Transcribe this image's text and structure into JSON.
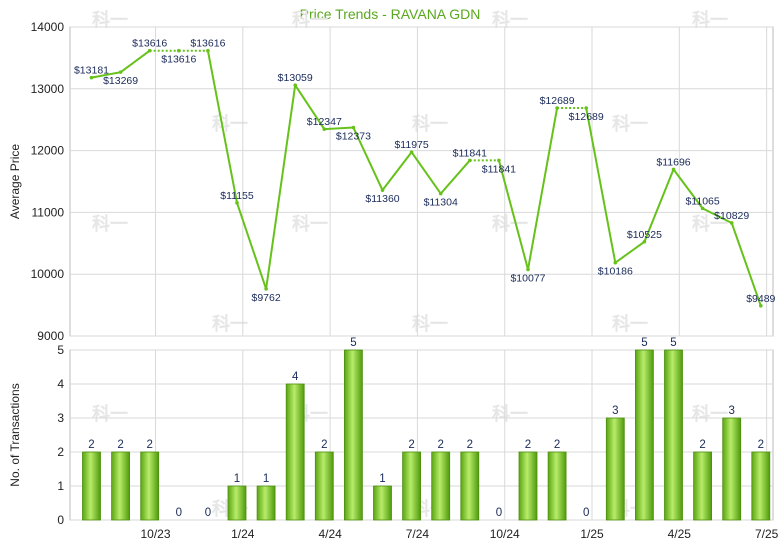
{
  "chart_data": {
    "title": "Price Trends - RAVANA GDN",
    "colors": {
      "line": "#66c21a",
      "bar": "#76c41f",
      "title": "#5aa81e"
    },
    "price_chart": {
      "type": "line",
      "ylabel": "Average Price",
      "ylim": [
        9000,
        14000
      ],
      "yticks": [
        9000,
        10000,
        11000,
        12000,
        13000,
        14000
      ],
      "grid": true,
      "values": [
        13181,
        13269,
        13616,
        13616,
        13616,
        11155,
        9762,
        13059,
        12347,
        12373,
        11360,
        11975,
        11304,
        11841,
        11841,
        10077,
        12689,
        12689,
        10186,
        10525,
        11696,
        11065,
        10829,
        9489
      ],
      "labels": [
        "$13181",
        "$13269",
        "$13616",
        "$13616",
        "$13616",
        "$11155",
        "$9762",
        "$13059",
        "$12347",
        "$12373",
        "$11360",
        "$11975",
        "$11304",
        "$11841",
        "$11841",
        "$10077",
        "$12689",
        "$12689",
        "$10186",
        "$10525",
        "$11696",
        "$11065",
        "$10829",
        "$9489"
      ]
    },
    "transactions_chart": {
      "type": "bar",
      "ylabel": "No. of Transactions",
      "ylim": [
        0,
        5
      ],
      "yticks": [
        0,
        1,
        2,
        3,
        4,
        5
      ],
      "grid": true,
      "values": [
        2,
        2,
        2,
        0,
        0,
        1,
        1,
        4,
        2,
        5,
        1,
        2,
        2,
        2,
        0,
        2,
        2,
        0,
        3,
        5,
        5,
        2,
        3,
        2
      ]
    },
    "x_ticks": [
      {
        "index": 2.2,
        "label": "10/23"
      },
      {
        "index": 5.2,
        "label": "1/24"
      },
      {
        "index": 8.2,
        "label": "4/24"
      },
      {
        "index": 11.2,
        "label": "7/24"
      },
      {
        "index": 14.2,
        "label": "10/24"
      },
      {
        "index": 17.2,
        "label": "1/25"
      },
      {
        "index": 20.2,
        "label": "4/25"
      },
      {
        "index": 23.2,
        "label": "7/25"
      }
    ],
    "watermark": "科一"
  }
}
